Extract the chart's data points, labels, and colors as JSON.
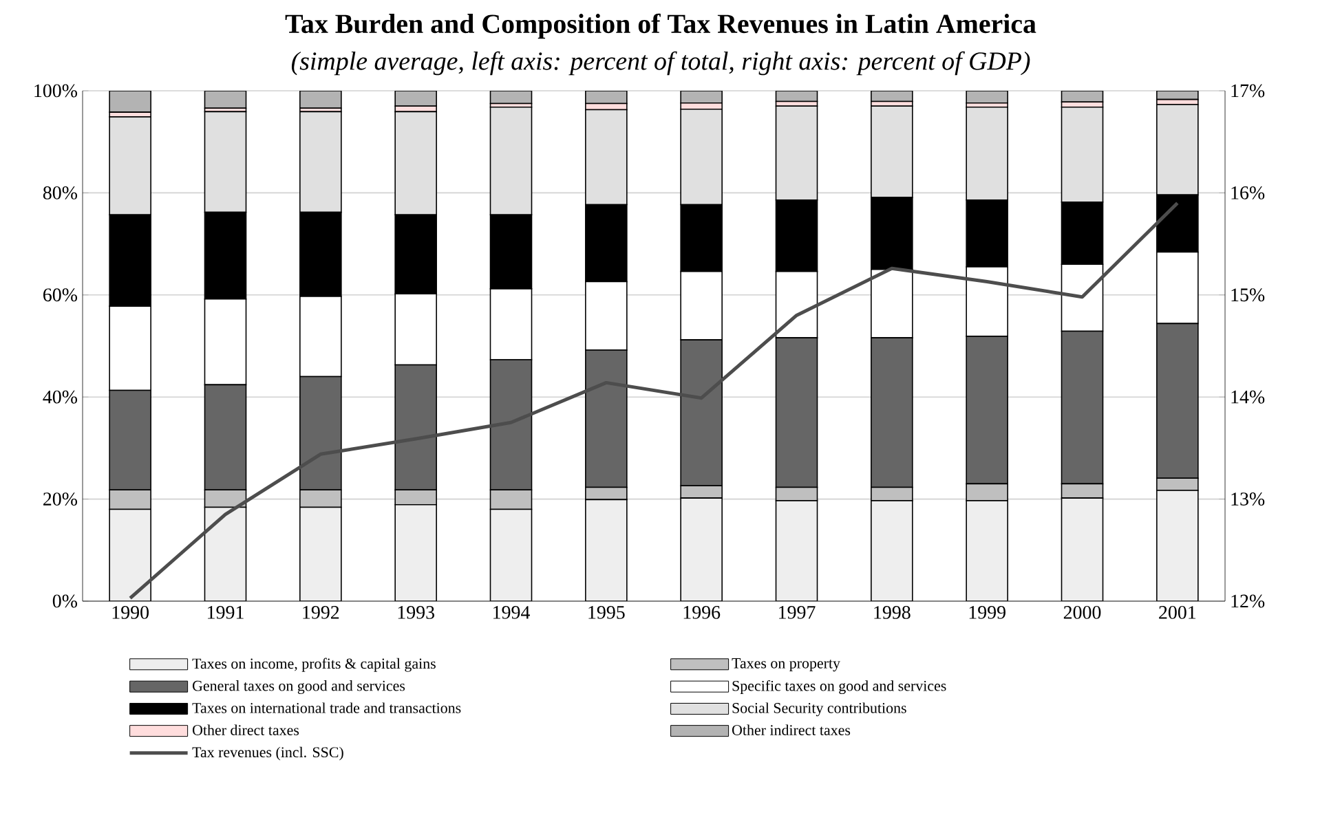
{
  "chart_data": {
    "type": "bar",
    "stacked": true,
    "title": "Tax Burden and Composition of Tax Revenues in Latin America",
    "subtitle": "(simple average, left axis: percent of total, right axis: percent of GDP)",
    "categories": [
      "1990",
      "1991",
      "1992",
      "1993",
      "1994",
      "1995",
      "1996",
      "1997",
      "1998",
      "1999",
      "2000",
      "2001"
    ],
    "series": [
      {
        "name": "Taxes on income, profits & capital gains",
        "color": "#eeeeee",
        "values": [
          18.0,
          18.4,
          18.4,
          18.9,
          18.0,
          19.9,
          20.2,
          19.7,
          19.7,
          19.7,
          20.2,
          21.7
        ]
      },
      {
        "name": "Taxes on property",
        "color": "#bfbfbf",
        "values": [
          3.8,
          3.4,
          3.4,
          2.9,
          3.8,
          2.4,
          2.4,
          2.6,
          2.6,
          3.3,
          2.8,
          2.4
        ]
      },
      {
        "name": "General taxes on good and services",
        "color": "#666666",
        "values": [
          19.5,
          20.6,
          22.2,
          24.5,
          25.5,
          26.9,
          28.6,
          29.3,
          29.3,
          28.9,
          29.9,
          30.3
        ]
      },
      {
        "name": "Specific taxes on good and services",
        "color": "#ffffff",
        "values": [
          16.5,
          16.8,
          15.7,
          13.9,
          13.9,
          13.4,
          13.4,
          13.0,
          13.4,
          13.6,
          13.1,
          14.0
        ]
      },
      {
        "name": "Taxes on international trade and transactions",
        "color": "#000000",
        "values": [
          17.9,
          17.0,
          16.5,
          15.5,
          14.5,
          15.1,
          13.1,
          14.0,
          14.1,
          13.1,
          12.2,
          11.2
        ]
      },
      {
        "name": "Social Security contributions",
        "color": "#e0e0e0",
        "values": [
          19.2,
          19.7,
          19.7,
          20.2,
          21.1,
          18.6,
          18.7,
          18.4,
          17.9,
          18.2,
          18.6,
          17.7
        ]
      },
      {
        "name": "Other direct taxes",
        "color": "#ffdddd",
        "values": [
          0.9,
          0.7,
          0.7,
          1.1,
          0.7,
          1.2,
          1.2,
          0.9,
          0.9,
          0.8,
          1.0,
          1.0
        ]
      },
      {
        "name": "Other indirect taxes",
        "color": "#b3b3b3",
        "values": [
          4.2,
          3.4,
          3.4,
          3.0,
          2.5,
          2.5,
          2.4,
          2.1,
          2.1,
          2.4,
          2.2,
          1.7
        ]
      },
      {
        "name": "Tax revenues (incl. SSC)",
        "type": "line",
        "axis": "y2",
        "color": "#4d4d4d",
        "values": [
          12.03,
          12.85,
          13.44,
          13.59,
          13.75,
          14.14,
          13.99,
          14.8,
          15.26,
          15.13,
          14.98,
          15.9
        ]
      }
    ],
    "ylim": [
      0,
      100
    ],
    "yticks": [
      {
        "value": 0,
        "label": "0%"
      },
      {
        "value": 20,
        "label": "20%"
      },
      {
        "value": 40,
        "label": "40%"
      },
      {
        "value": 60,
        "label": "60%"
      },
      {
        "value": 80,
        "label": "80%"
      },
      {
        "value": 100,
        "label": "100%"
      }
    ],
    "y2lim": [
      12,
      17
    ],
    "y2ticks": [
      {
        "value": 12,
        "label": "12%"
      },
      {
        "value": 13,
        "label": "13%"
      },
      {
        "value": 14,
        "label": "14%"
      },
      {
        "value": 15,
        "label": "15%"
      },
      {
        "value": 16,
        "label": "16%"
      },
      {
        "value": 17,
        "label": "17%"
      }
    ],
    "grid": "y",
    "legend": "bottom"
  }
}
